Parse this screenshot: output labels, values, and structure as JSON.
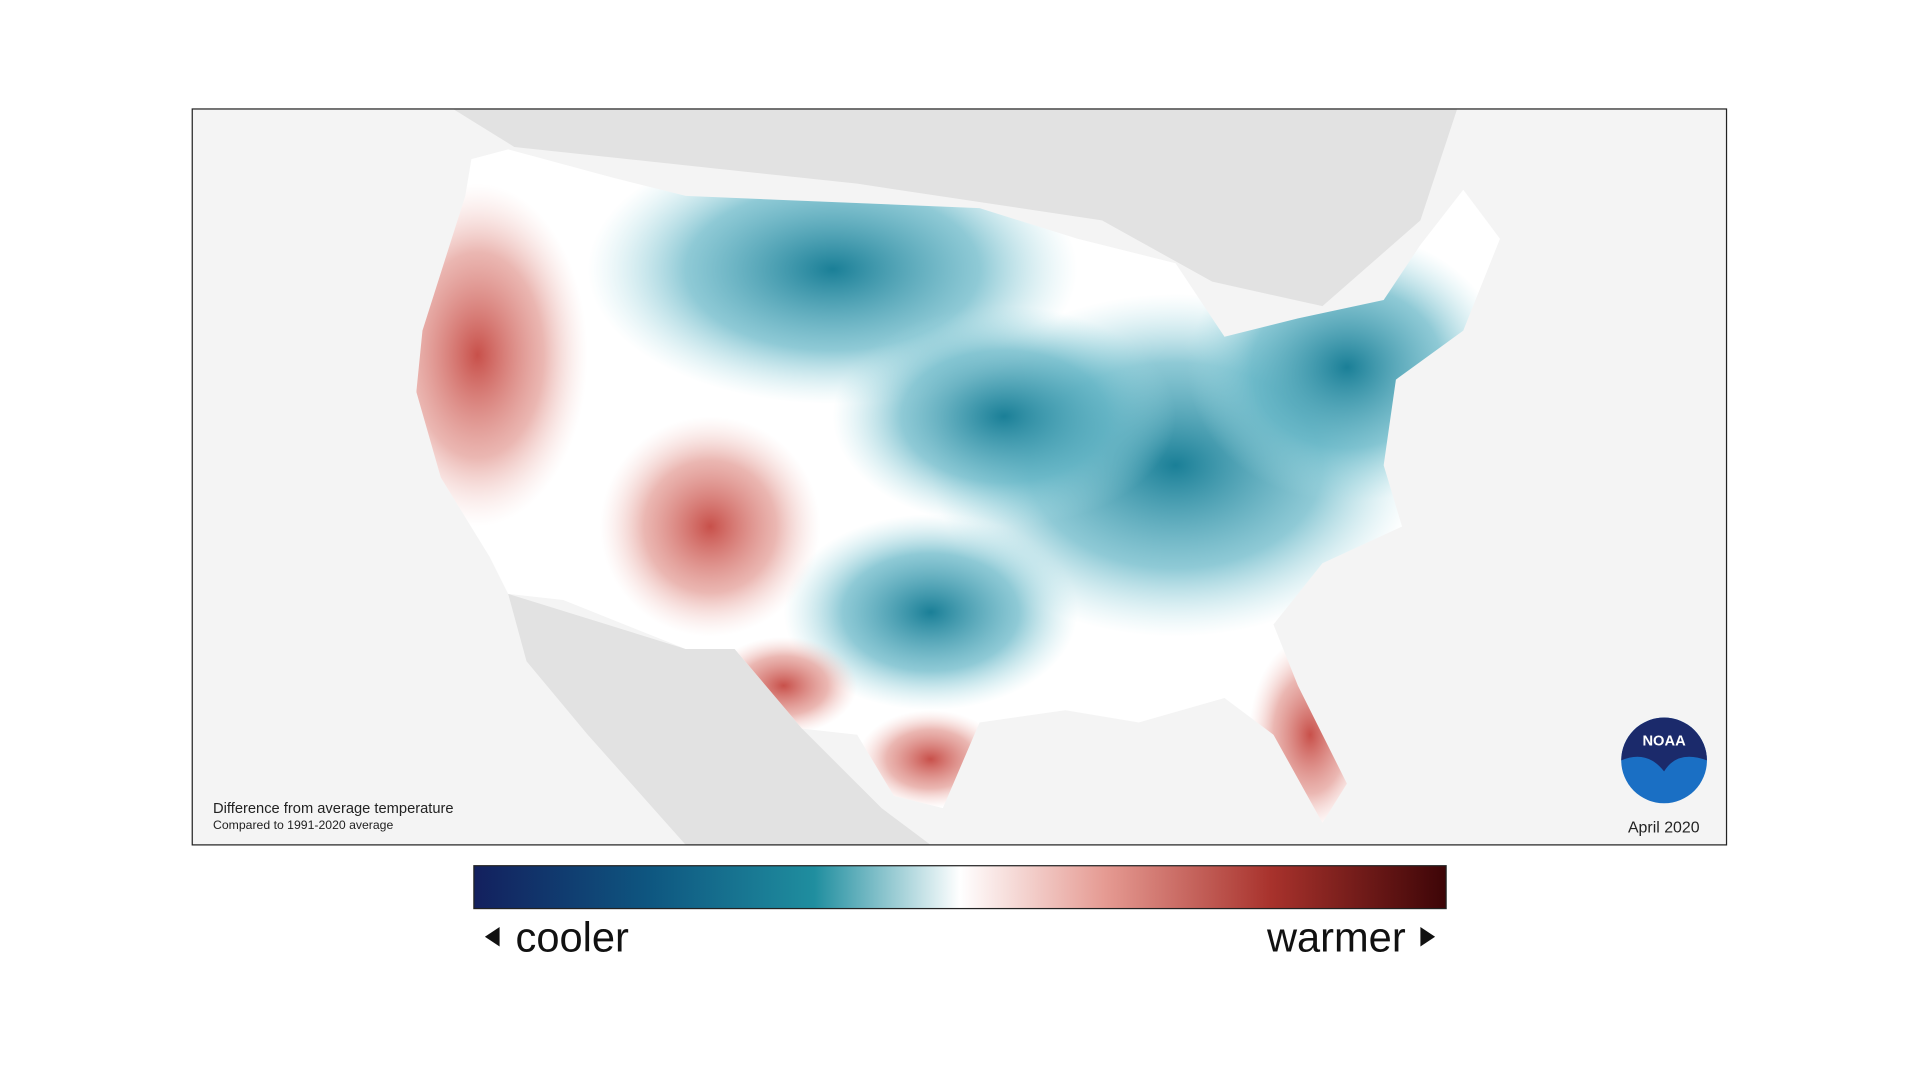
{
  "map": {
    "caption": {
      "title": "Difference from average temperature",
      "subtitle": "Compared to 1991-2020 average"
    },
    "date": "April 2020",
    "logo": "NOAA"
  },
  "legend": {
    "low": "cooler",
    "high": "warmer"
  }
}
